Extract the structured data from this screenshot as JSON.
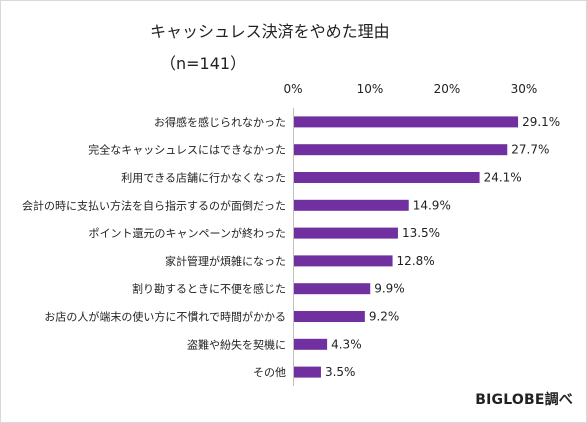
{
  "title": "キャッシュレス決済をやめた理由",
  "subtitle": "（n=141）",
  "credit": "BIGLOBE調べ",
  "chart_data": {
    "type": "bar",
    "orientation": "horizontal",
    "title": "キャッシュレス決済をやめた理由",
    "subtitle": "（n=141）",
    "categories": [
      "お得感を感じられなかった",
      "完全なキャッシュレスにはできなかった",
      "利用できる店舗に行かなくなった",
      "会計の時に支払い方法を自ら指示するのが面倒だった",
      "ポイント還元のキャンペーンが終わった",
      "家計管理が煩雑になった",
      "割り勘するときに不便を感じた",
      "お店の人が端末の使い方に不慣れで時間がかかる",
      "盗難や紛失を契機に",
      "その他"
    ],
    "values": [
      29.1,
      27.7,
      24.1,
      14.9,
      13.5,
      12.8,
      9.9,
      9.2,
      4.3,
      3.5
    ],
    "value_labels": [
      "29.1%",
      "27.7%",
      "24.1%",
      "14.9%",
      "13.5%",
      "12.8%",
      "9.9%",
      "9.2%",
      "4.3%",
      "3.5%"
    ],
    "x_ticks": [
      "0%",
      "10%",
      "20%",
      "30%"
    ],
    "x_tick_values": [
      0,
      10,
      20,
      30
    ],
    "xlim": [
      0,
      30
    ],
    "grid": false,
    "legend": "none",
    "bar_color": "#7030a0"
  }
}
